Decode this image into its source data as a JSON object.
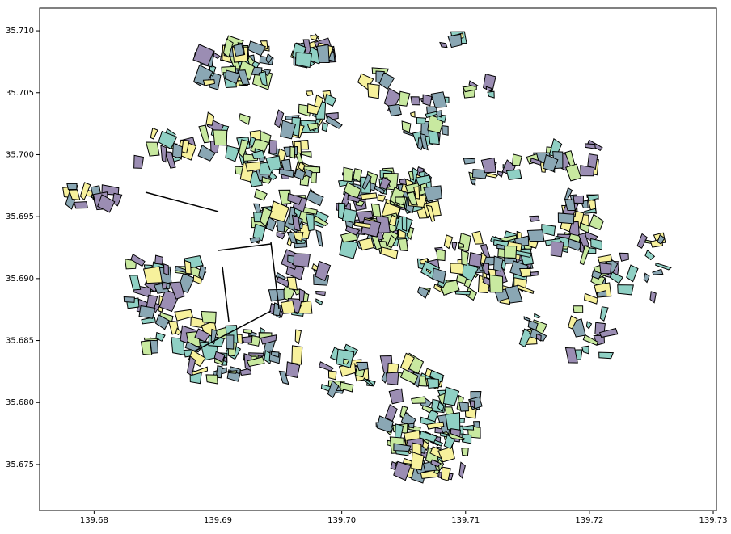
{
  "chart_data": {
    "type": "map",
    "xlim": [
      139.6756,
      139.73026
    ],
    "ylim": [
      35.67128,
      35.71183
    ],
    "xticks": [
      139.68,
      139.69,
      {
        "value": 139.7,
        "label": "139.70"
      },
      139.71,
      139.72,
      139.73
    ],
    "yticks": [
      {
        "value": 35.71,
        "label": "35.710"
      },
      35.705,
      {
        "value": 35.7,
        "label": "35.700"
      },
      35.695,
      {
        "value": 35.69,
        "label": "35.690"
      },
      35.685,
      {
        "value": 35.68,
        "label": "35.680"
      },
      35.675
    ]
  }
}
